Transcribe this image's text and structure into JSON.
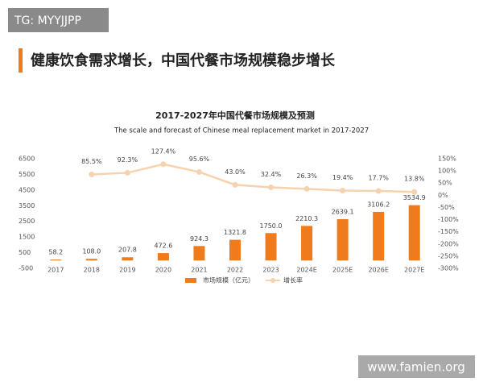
{
  "header": {
    "tag": "TG: MYYJJPP",
    "headline": "健康饮食需求增长，中国代餐市场规模稳步增长"
  },
  "watermark": "www.famien.org",
  "chart_data": {
    "type": "bar",
    "title": "2017-2027年中国代餐市场规模及预测",
    "subtitle": "The scale and forecast of Chinese meal replacement market in 2017-2027",
    "categories": [
      "2017",
      "2018",
      "2019",
      "2020",
      "2021",
      "2022",
      "2023",
      "2024E",
      "2025E",
      "2026E",
      "2027E"
    ],
    "series": [
      {
        "name": "市场规模（亿元）",
        "color": "#f07b1c",
        "values": [
          58.2,
          108.0,
          207.8,
          472.6,
          924.3,
          1321.8,
          1750.0,
          2210.3,
          2639.1,
          3106.2,
          3534.9
        ],
        "value_labels": [
          "58.2",
          "108.0",
          "207.8",
          "472.6",
          "924.3",
          "1321.8",
          "1750.0",
          "2210.3",
          "2639.1",
          "3106.2",
          "3534.9"
        ]
      },
      {
        "name": "增长率",
        "type": "line",
        "axis": "y2",
        "color": "#f6d2ae",
        "values": [
          null,
          85.5,
          92.3,
          127.4,
          95.6,
          43.0,
          32.4,
          26.3,
          19.4,
          17.7,
          13.8
        ],
        "value_labels": [
          null,
          "85.5%",
          "92.3%",
          "127.4%",
          "95.6%",
          "43.0%",
          "32.4%",
          "26.3%",
          "19.4%",
          "17.7%",
          "13.8%"
        ]
      }
    ],
    "ylim": [
      -500,
      6500
    ],
    "yticks": [
      -500,
      500,
      1500,
      2500,
      3500,
      4500,
      5500,
      6500
    ],
    "y2lim": [
      -300,
      150
    ],
    "y2ticks": [
      {
        "value": -300,
        "label": "-300%"
      },
      {
        "value": -250,
        "label": "-250%"
      },
      {
        "value": -200,
        "label": "-200%"
      },
      {
        "value": -150,
        "label": "-150%"
      },
      {
        "value": -100,
        "label": "-100%"
      },
      {
        "value": -50,
        "label": "-50%"
      },
      {
        "value": 0,
        "label": "0%"
      },
      {
        "value": 50,
        "label": "50%"
      },
      {
        "value": 100,
        "label": "100%"
      },
      {
        "value": 150,
        "label": "150%"
      }
    ],
    "grid": false
  }
}
